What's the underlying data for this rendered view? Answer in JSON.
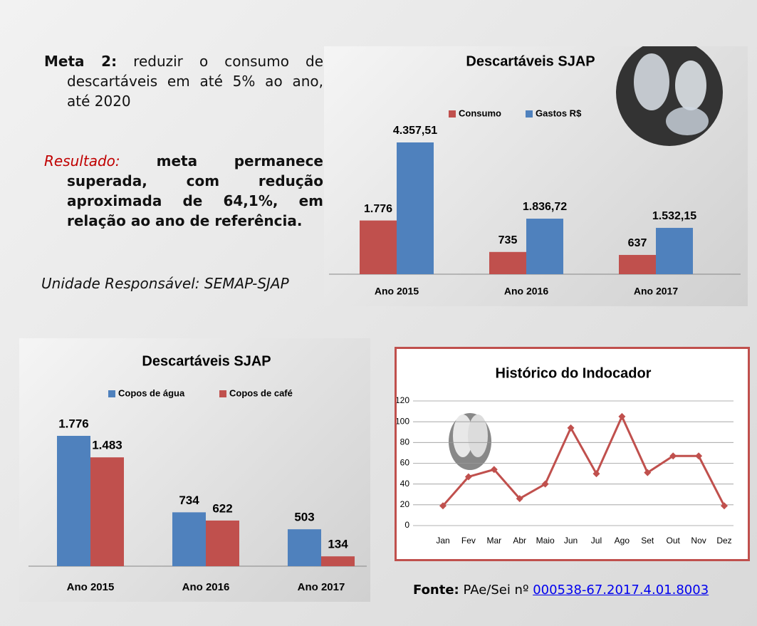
{
  "slide": {
    "meta": {
      "label": "Meta 2:",
      "text": "reduzir o consumo de descartáveis em até 5% ao ano, até 2020"
    },
    "result": {
      "label": "Resultado:",
      "text": "meta permanece superada, com redução aproximada de 64,1%, em relação ao ano de referência."
    },
    "unit": "Unidade Responsável: SEMAP-SJAP",
    "source": {
      "label": "Fonte:",
      "text": "PAe/Sei nº",
      "link": "000538-67.2017.4.01.8003"
    }
  },
  "chart_data": [
    {
      "type": "bar",
      "title": "Descartáveis SJAP",
      "categories": [
        "Ano 2015",
        "Ano 2016",
        "Ano 2017"
      ],
      "series": [
        {
          "name": "Consumo",
          "color": "#c0504d",
          "values": [
            1776,
            735,
            637
          ],
          "value_labels": [
            "1.776",
            "735",
            "637"
          ]
        },
        {
          "name": "Gastos R$",
          "color": "#4f81bd",
          "values": [
            4357.51,
            1836.72,
            1532.15
          ],
          "value_labels": [
            "4.357,51",
            "1.836,72",
            "1.532,15"
          ]
        }
      ]
    },
    {
      "type": "bar",
      "title": "Descartáveis SJAP",
      "categories": [
        "Ano 2015",
        "Ano 2016",
        "Ano 2017"
      ],
      "series": [
        {
          "name": "Copos de água",
          "color": "#4f81bd",
          "values": [
            1776,
            734,
            503
          ],
          "value_labels": [
            "1.776",
            "734",
            "503"
          ]
        },
        {
          "name": "Copos de café",
          "color": "#c0504d",
          "values": [
            1483,
            622,
            134
          ],
          "value_labels": [
            "1.483",
            "622",
            "134"
          ]
        }
      ]
    },
    {
      "type": "line",
      "title": "Histórico do Indocador",
      "categories": [
        "Jan",
        "Fev",
        "Mar",
        "Abr",
        "Maio",
        "Jun",
        "Jul",
        "Ago",
        "Set",
        "Out",
        "Nov",
        "Dez"
      ],
      "values": [
        19,
        47,
        54,
        26,
        40,
        94,
        50,
        105,
        51,
        67,
        67,
        19
      ],
      "color": "#c0504d",
      "ylim": [
        0,
        120
      ],
      "yticks": [
        0,
        20,
        40,
        60,
        80,
        100,
        120
      ],
      "grid": true
    }
  ]
}
